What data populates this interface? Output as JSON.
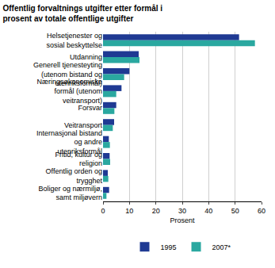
{
  "chart_data": {
    "type": "bar",
    "orientation": "horizontal",
    "title": "Offentlig forvaltnings utgifter etter formål i prosent av totale offentlige utgifter",
    "xlabel": "Prosent",
    "categories": [
      "Helsetjenester og sosial beskyttelse",
      "Utdanning",
      "Generell tjenesteyting (utenom bistand og utenriksformål)",
      "Næringsøkonomiske formål (utenom veitransport)",
      "Forsvar",
      "Veitransport",
      "Internasjonal bistand og andre utenriksformål",
      "Fritid, kultur og religion",
      "Offentlig orden og trygghet",
      "Boliger og nærmiljø, samt miljøvern"
    ],
    "series": [
      {
        "name": "1995",
        "color": "#1f3a93",
        "values": [
          51.5,
          13.5,
          10,
          7,
          5,
          4.2,
          2.2,
          2.5,
          1.8,
          2.3
        ]
      },
      {
        "name": "2007*",
        "color": "#2aa8a0",
        "values": [
          57.5,
          13.8,
          8,
          5,
          4.3,
          3.7,
          2.6,
          2.7,
          2,
          1.3
        ]
      }
    ],
    "xlim": [
      0,
      60
    ],
    "xticks": [
      0,
      10,
      20,
      30,
      40,
      50,
      60
    ],
    "grid": true,
    "legend": "bottom"
  }
}
